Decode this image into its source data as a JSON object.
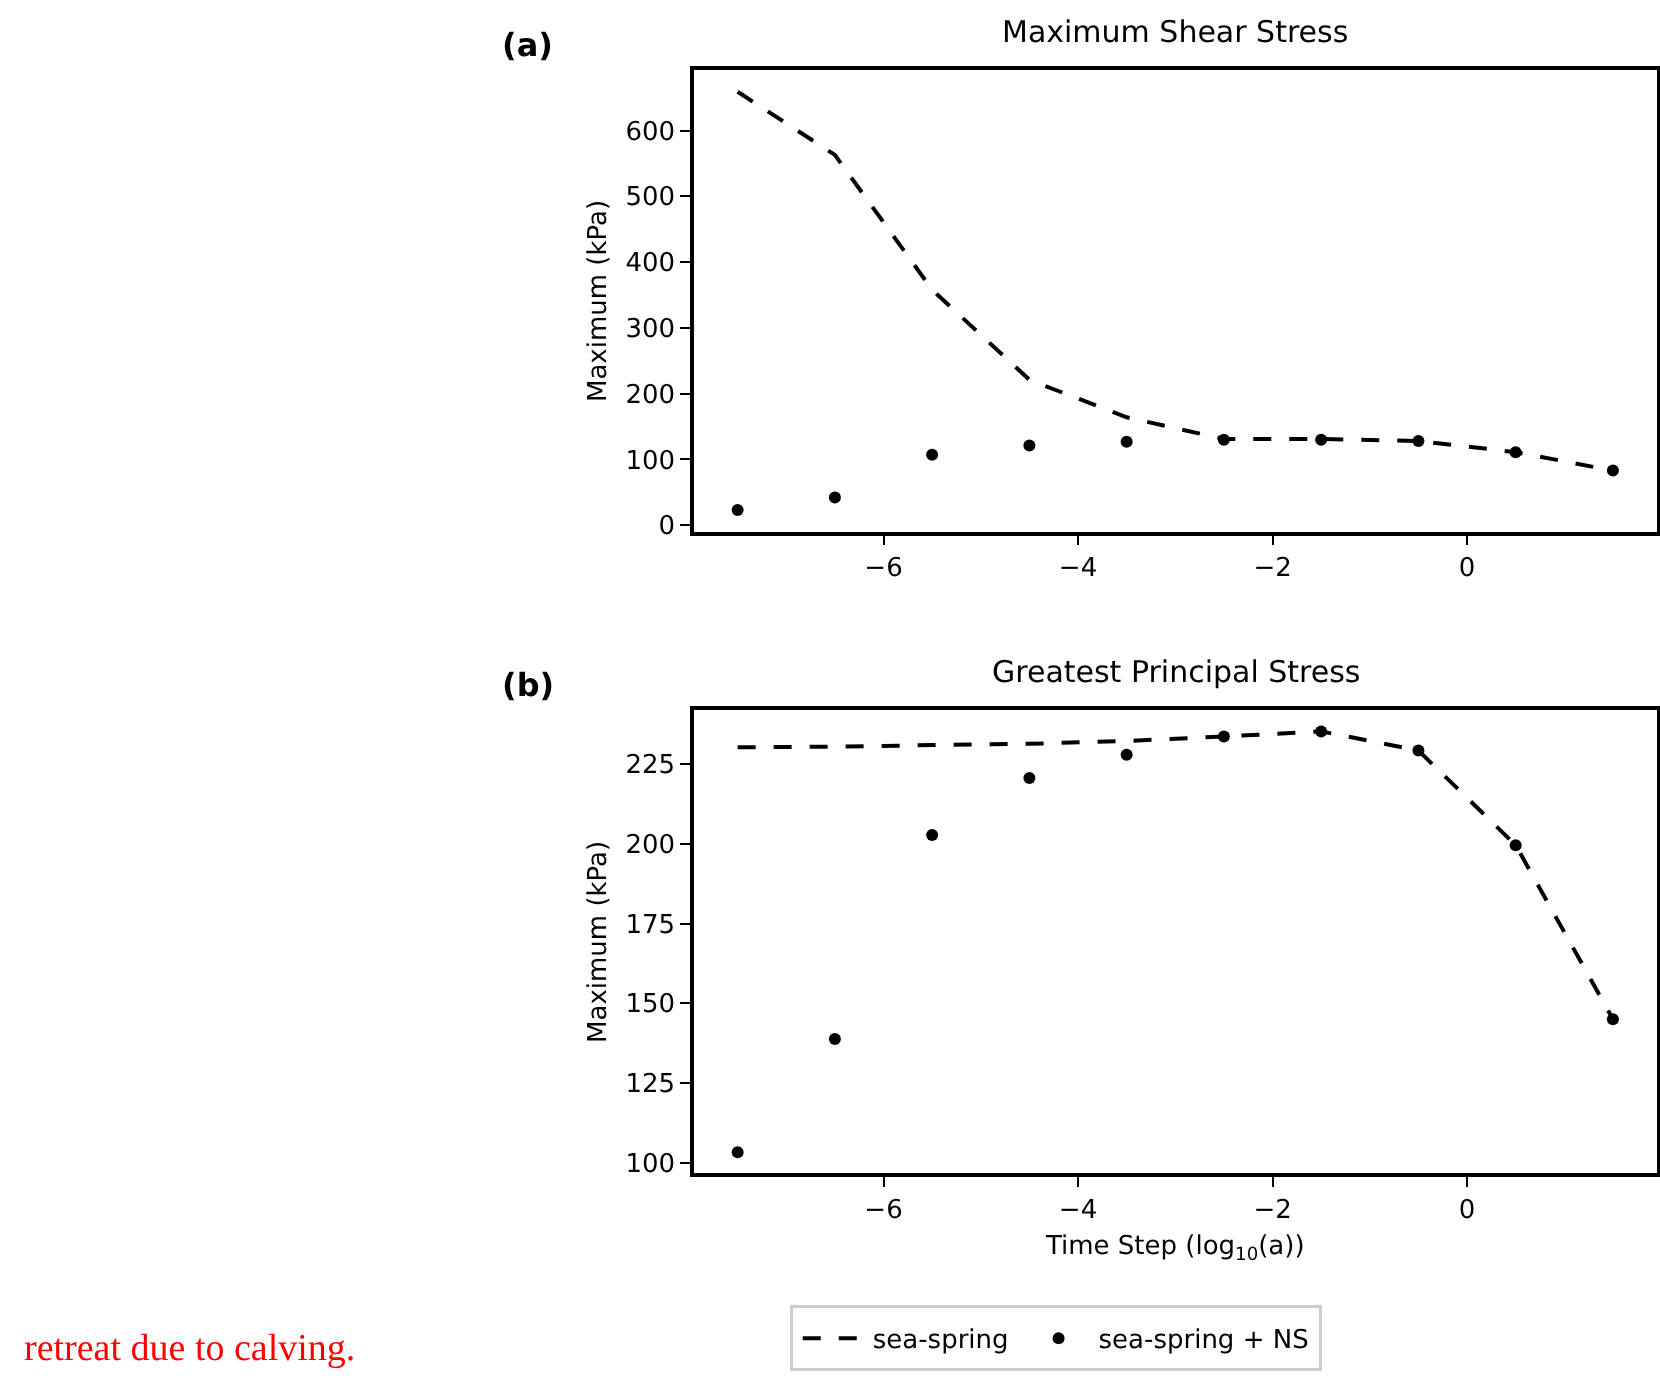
{
  "chart_data": [
    {
      "type": "line",
      "title": "Maximum Shear Stress",
      "ylabel": "Maximum (kPa)",
      "annotations": [
        "(a)"
      ],
      "x": [
        -7.5,
        -6.5,
        -5.5,
        -4.5,
        -3.5,
        -2.5,
        -1.5,
        -0.5,
        0.5,
        1.5
      ],
      "xlim": [
        -7.95,
        1.95
      ],
      "xticks": [
        -6,
        -4,
        -2,
        0
      ],
      "ylim": [
        -10,
        692
      ],
      "yticks": [
        0,
        100,
        200,
        300,
        400,
        500,
        600
      ],
      "legend": "bottom",
      "series": [
        {
          "name": "sea-spring",
          "color": "#000000",
          "line_style": "dashed",
          "marker": "none",
          "values": [
            659,
            563,
            358,
            221,
            164,
            131,
            131,
            128,
            111,
            83
          ]
        },
        {
          "name": "sea-spring + NS",
          "type": "scatter",
          "color": "#000000",
          "marker": "circle",
          "values": [
            23,
            42,
            107,
            121,
            127,
            130,
            130,
            128,
            111,
            83
          ]
        }
      ]
    },
    {
      "type": "line",
      "title": "Greatest Principal Stress",
      "xlabel": "Time Step (log$_{10}$(a))",
      "ylabel": "Maximum (kPa)",
      "annotations": [
        "(b)",
        "retreat due to calving."
      ],
      "x": [
        -7.5,
        -6.5,
        -5.5,
        -4.5,
        -3.5,
        -2.5,
        -1.5,
        -0.5,
        0.5,
        1.5
      ],
      "xlim": [
        -7.95,
        1.95
      ],
      "xticks": [
        -6,
        -4,
        -2,
        0
      ],
      "ylim": [
        96.6,
        241.9
      ],
      "yticks": [
        100,
        125,
        150,
        175,
        200,
        225
      ],
      "series": [
        {
          "color": "#000000",
          "line_style": "dashed",
          "marker": "none",
          "values": [
            230.3,
            230.5,
            231,
            231.4,
            232.3,
            233.7,
            235.3,
            229.3,
            199.6,
            145
          ]
        },
        {
          "type": "scatter",
          "color": "#000000",
          "marker": "circle",
          "values": [
            103.2,
            138.8,
            202.8,
            220.7,
            228,
            233.7,
            235.3,
            229.3,
            199.6,
            145
          ]
        }
      ]
    }
  ]
}
